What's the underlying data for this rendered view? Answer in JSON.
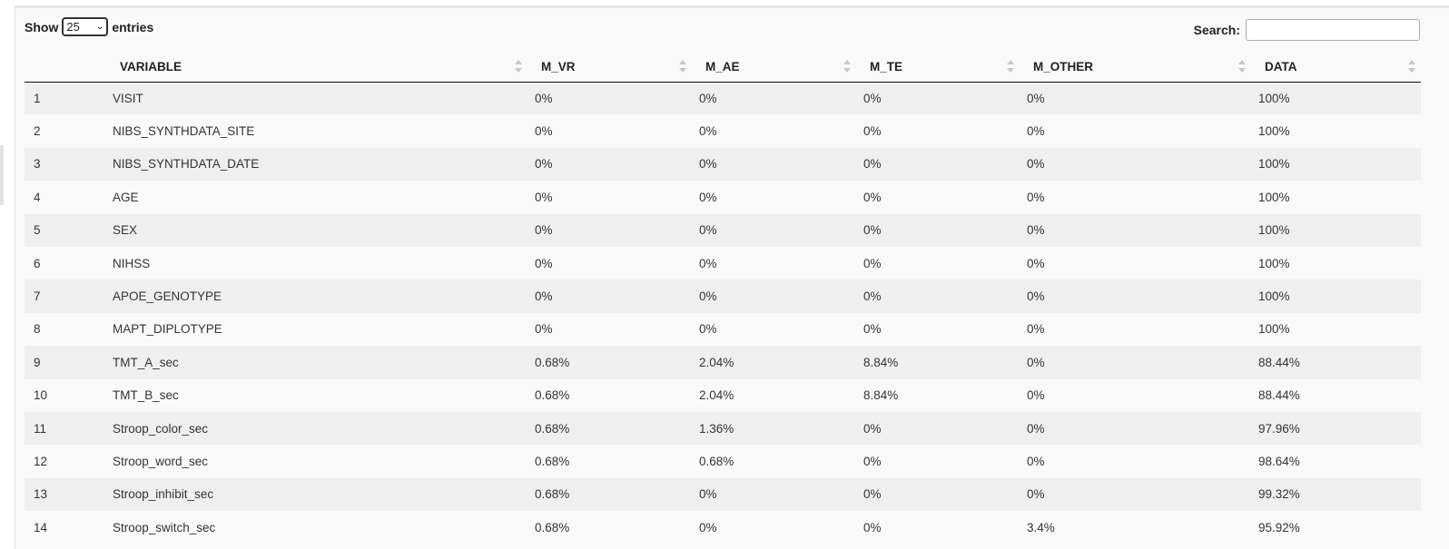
{
  "controls": {
    "show_label": "Show",
    "entries_value": "25",
    "entries_label": "entries",
    "search_label": "Search:",
    "search_value": ""
  },
  "table": {
    "columns": [
      "",
      "VARIABLE",
      "M_VR",
      "M_AE",
      "M_TE",
      "M_OTHER",
      "DATA"
    ],
    "rows": [
      [
        "1",
        "VISIT",
        "0%",
        "0%",
        "0%",
        "0%",
        "100%"
      ],
      [
        "2",
        "NIBS_SYNTHDATA_SITE",
        "0%",
        "0%",
        "0%",
        "0%",
        "100%"
      ],
      [
        "3",
        "NIBS_SYNTHDATA_DATE",
        "0%",
        "0%",
        "0%",
        "0%",
        "100%"
      ],
      [
        "4",
        "AGE",
        "0%",
        "0%",
        "0%",
        "0%",
        "100%"
      ],
      [
        "5",
        "SEX",
        "0%",
        "0%",
        "0%",
        "0%",
        "100%"
      ],
      [
        "6",
        "NIHSS",
        "0%",
        "0%",
        "0%",
        "0%",
        "100%"
      ],
      [
        "7",
        "APOE_GENOTYPE",
        "0%",
        "0%",
        "0%",
        "0%",
        "100%"
      ],
      [
        "8",
        "MAPT_DIPLOTYPE",
        "0%",
        "0%",
        "0%",
        "0%",
        "100%"
      ],
      [
        "9",
        "TMT_A_sec",
        "0.68%",
        "2.04%",
        "8.84%",
        "0%",
        "88.44%"
      ],
      [
        "10",
        "TMT_B_sec",
        "0.68%",
        "2.04%",
        "8.84%",
        "0%",
        "88.44%"
      ],
      [
        "11",
        "Stroop_color_sec",
        "0.68%",
        "1.36%",
        "0%",
        "0%",
        "97.96%"
      ],
      [
        "12",
        "Stroop_word_sec",
        "0.68%",
        "0.68%",
        "0%",
        "0%",
        "98.64%"
      ],
      [
        "13",
        "Stroop_inhibit_sec",
        "0.68%",
        "0%",
        "0%",
        "0%",
        "99.32%"
      ],
      [
        "14",
        "Stroop_switch_sec",
        "0.68%",
        "0%",
        "0%",
        "3.4%",
        "95.92%"
      ]
    ]
  }
}
